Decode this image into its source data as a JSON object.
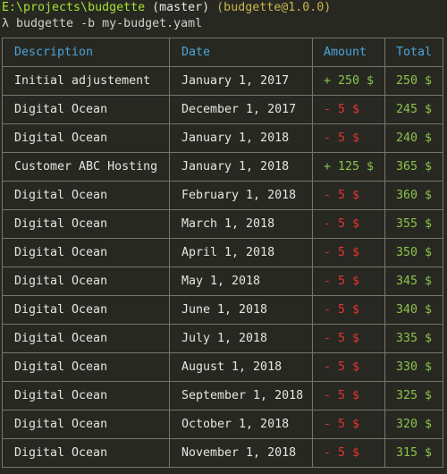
{
  "terminal": {
    "path": "E:\\projects\\budgette",
    "branch": " (master)",
    "package": " (budgette@1.0.0)",
    "prompt_symbol": "λ",
    "command": " budgette -b my-budget.yaml"
  },
  "table": {
    "headers": {
      "description": "Description",
      "date": "Date",
      "amount": "Amount",
      "total": "Total"
    },
    "rows": [
      {
        "description": "Initial adjustement",
        "date": "January 1, 2017",
        "amount": "+ 250 $",
        "sign": "pos",
        "total": "250 $"
      },
      {
        "description": "Digital Ocean",
        "date": "December 1, 2017",
        "amount": "- 5 $",
        "sign": "neg",
        "total": "245 $"
      },
      {
        "description": "Digital Ocean",
        "date": "January 1, 2018",
        "amount": "- 5 $",
        "sign": "neg",
        "total": "240 $"
      },
      {
        "description": "Customer ABC Hosting",
        "date": "January 1, 2018",
        "amount": "+ 125 $",
        "sign": "pos",
        "total": "365 $"
      },
      {
        "description": "Digital Ocean",
        "date": "February 1, 2018",
        "amount": "- 5 $",
        "sign": "neg",
        "total": "360 $"
      },
      {
        "description": "Digital Ocean",
        "date": "March 1, 2018",
        "amount": "- 5 $",
        "sign": "neg",
        "total": "355 $"
      },
      {
        "description": "Digital Ocean",
        "date": "April 1, 2018",
        "amount": "- 5 $",
        "sign": "neg",
        "total": "350 $"
      },
      {
        "description": "Digital Ocean",
        "date": "May 1, 2018",
        "amount": "- 5 $",
        "sign": "neg",
        "total": "345 $"
      },
      {
        "description": "Digital Ocean",
        "date": "June 1, 2018",
        "amount": "- 5 $",
        "sign": "neg",
        "total": "340 $"
      },
      {
        "description": "Digital Ocean",
        "date": "July 1, 2018",
        "amount": "- 5 $",
        "sign": "neg",
        "total": "335 $"
      },
      {
        "description": "Digital Ocean",
        "date": "August 1, 2018",
        "amount": "- 5 $",
        "sign": "neg",
        "total": "330 $"
      },
      {
        "description": "Digital Ocean",
        "date": "September 1, 2018",
        "amount": "- 5 $",
        "sign": "neg",
        "total": "325 $"
      },
      {
        "description": "Digital Ocean",
        "date": "October 1, 2018",
        "amount": "- 5 $",
        "sign": "neg",
        "total": "320 $"
      },
      {
        "description": "Digital Ocean",
        "date": "November 1, 2018",
        "amount": "- 5 $",
        "sign": "neg",
        "total": "315 $"
      }
    ]
  },
  "colors": {
    "background": "#272822",
    "path": "#a6e22e",
    "package": "#c9b44a",
    "header": "#4aa3d8",
    "positive": "#8bc34a",
    "negative": "#e8322e",
    "border": "#75776e"
  }
}
